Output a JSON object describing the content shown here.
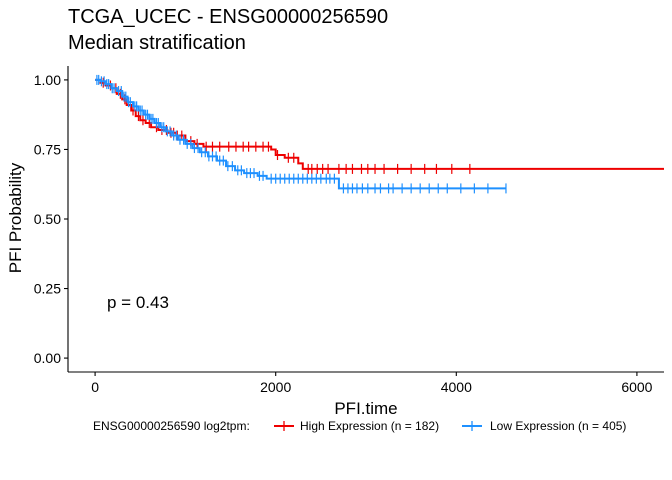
{
  "chart_data": {
    "type": "line",
    "title": "TCGA_UCEC - ENSG00000256590",
    "subtitle": "Median stratification",
    "xlabel": "PFI.time",
    "ylabel": "PFI Probability",
    "xlim": [
      -300,
      6300
    ],
    "ylim": [
      -0.05,
      1.05
    ],
    "x_ticks": [
      0,
      2000,
      4000,
      6000
    ],
    "x_tick_labels": [
      "0",
      "2000",
      "4000",
      "6000"
    ],
    "y_ticks": [
      0,
      0.25,
      0.5,
      0.75,
      1.0
    ],
    "y_tick_labels": [
      "0.00",
      "0.25",
      "0.50",
      "0.75",
      "1.00"
    ],
    "grid": false,
    "legend_position": "bottom",
    "legend_title": "ENSG00000256590 log2tpm:",
    "annotation": "p = 0.43",
    "series": [
      {
        "name": "High Expression (n = 182)",
        "color": "#ee0000",
        "steps": [
          [
            0,
            1.0
          ],
          [
            60,
            0.99
          ],
          [
            120,
            0.98
          ],
          [
            180,
            0.97
          ],
          [
            240,
            0.95
          ],
          [
            300,
            0.93
          ],
          [
            350,
            0.91
          ],
          [
            400,
            0.89
          ],
          [
            450,
            0.87
          ],
          [
            500,
            0.855
          ],
          [
            560,
            0.845
          ],
          [
            620,
            0.83
          ],
          [
            700,
            0.82
          ],
          [
            800,
            0.81
          ],
          [
            900,
            0.8
          ],
          [
            1000,
            0.78
          ],
          [
            1100,
            0.77
          ],
          [
            1200,
            0.76
          ],
          [
            1950,
            0.75
          ],
          [
            2000,
            0.73
          ],
          [
            2100,
            0.72
          ],
          [
            2250,
            0.7
          ],
          [
            2300,
            0.68
          ],
          [
            6300,
            0.68
          ]
        ],
        "censors": [
          90,
          170,
          230,
          280,
          330,
          420,
          480,
          530,
          600,
          680,
          740,
          790,
          840,
          870,
          910,
          960,
          1060,
          1130,
          1230,
          1300,
          1380,
          1480,
          1560,
          1640,
          1700,
          1780,
          1860,
          1920,
          2020,
          2140,
          2200,
          2360,
          2400,
          2460,
          2520,
          2580,
          2700,
          2780,
          2850,
          2950,
          3020,
          3100,
          3200,
          3350,
          3500,
          3650,
          3780,
          3950,
          4150
        ]
      },
      {
        "name": "Low Expression (n = 405)",
        "color": "#1e90ff",
        "steps": [
          [
            0,
            1.0
          ],
          [
            60,
            0.995
          ],
          [
            120,
            0.985
          ],
          [
            180,
            0.97
          ],
          [
            240,
            0.96
          ],
          [
            300,
            0.94
          ],
          [
            360,
            0.92
          ],
          [
            420,
            0.905
          ],
          [
            480,
            0.89
          ],
          [
            540,
            0.875
          ],
          [
            600,
            0.86
          ],
          [
            660,
            0.845
          ],
          [
            720,
            0.83
          ],
          [
            780,
            0.815
          ],
          [
            850,
            0.8
          ],
          [
            920,
            0.785
          ],
          [
            1000,
            0.77
          ],
          [
            1080,
            0.755
          ],
          [
            1160,
            0.74
          ],
          [
            1250,
            0.725
          ],
          [
            1350,
            0.71
          ],
          [
            1450,
            0.69
          ],
          [
            1550,
            0.675
          ],
          [
            1650,
            0.665
          ],
          [
            1800,
            0.655
          ],
          [
            1900,
            0.645
          ],
          [
            2700,
            0.61
          ],
          [
            4550,
            0.61
          ]
        ],
        "censors": [
          20,
          40,
          70,
          100,
          130,
          150,
          190,
          210,
          260,
          290,
          320,
          340,
          370,
          390,
          440,
          460,
          500,
          520,
          560,
          580,
          620,
          640,
          680,
          700,
          740,
          760,
          800,
          830,
          870,
          900,
          940,
          980,
          1020,
          1060,
          1100,
          1140,
          1180,
          1220,
          1260,
          1300,
          1340,
          1380,
          1420,
          1470,
          1520,
          1580,
          1620,
          1680,
          1720,
          1760,
          1820,
          1860,
          1950,
          2000,
          2050,
          2100,
          2150,
          2200,
          2250,
          2300,
          2350,
          2400,
          2450,
          2500,
          2560,
          2600,
          2650,
          2750,
          2800,
          2850,
          2900,
          2960,
          3020,
          3100,
          3160,
          3250,
          3300,
          3400,
          3500,
          3600,
          3700,
          3800,
          3900,
          4050,
          4200,
          4350,
          4550
        ]
      }
    ]
  }
}
